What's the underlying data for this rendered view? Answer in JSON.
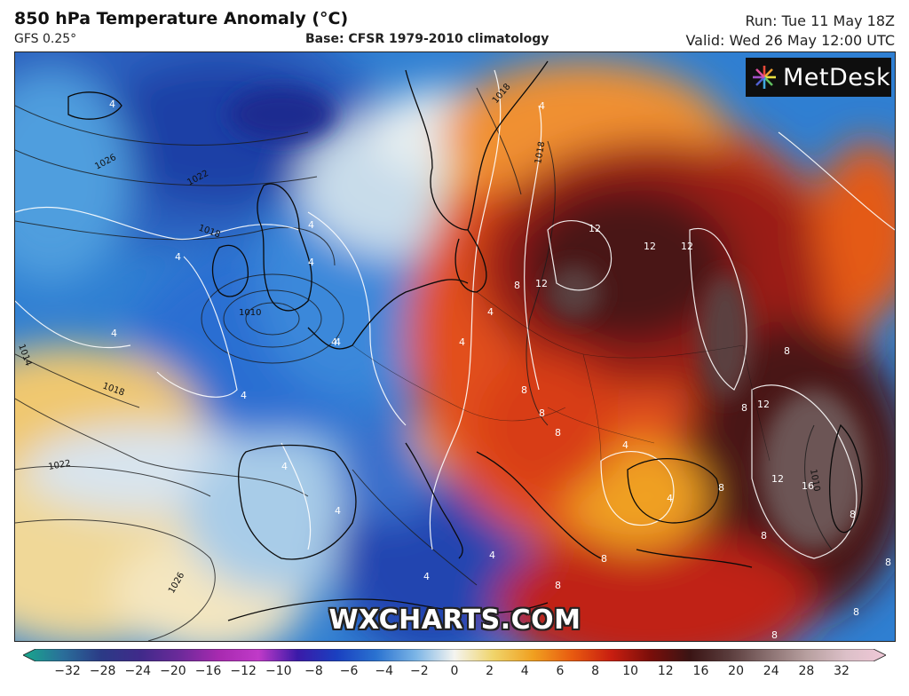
{
  "header": {
    "title": "850 hPa Temperature Anomaly (°C)",
    "model": "GFS 0.25°",
    "base": "Base: CFSR 1979-2010 climatology",
    "run": "Run: Tue 11 May 18Z",
    "valid": "Valid: Wed 26 May 12:00 UTC"
  },
  "logo": {
    "text": "MetDesk",
    "icon": "metdesk-starburst-icon"
  },
  "watermark": "WXCHARTS.COM",
  "colorbar": {
    "ticks": [
      "−32",
      "−28",
      "−24",
      "−20",
      "−16",
      "−12",
      "−10",
      "−8",
      "−6",
      "−4",
      "−2",
      "0",
      "2",
      "4",
      "6",
      "8",
      "10",
      "12",
      "16",
      "20",
      "24",
      "28",
      "32"
    ],
    "colors": [
      "#18a88c",
      "#2a6f9a",
      "#2b3a86",
      "#402a8a",
      "#6c2a9a",
      "#a82ab0",
      "#c03ac8",
      "#3a1aa8",
      "#1a40c0",
      "#2a72d0",
      "#7ab4e6",
      "#f4f4f0",
      "#f0d46a",
      "#f0a020",
      "#e85a10",
      "#c81e10",
      "#7a0e0a",
      "#3a1414",
      "#5a3c3c",
      "#8a7070",
      "#b8a0a0",
      "#dcc0c8",
      "#f0c8d8"
    ]
  },
  "map": {
    "isobar_labels": [
      "1026",
      "1022",
      "1018",
      "1010",
      "1014",
      "1018",
      "1022",
      "1026",
      "1018",
      "1018",
      "1010"
    ],
    "anomaly_labels": [
      "4",
      "4",
      "4",
      "4",
      "4",
      "4",
      "4",
      "4",
      "4",
      "4",
      "4",
      "4",
      "4",
      "4",
      "4",
      "12",
      "12",
      "12",
      "12",
      "8",
      "8",
      "8",
      "8",
      "8",
      "8",
      "12",
      "12",
      "16",
      "8",
      "8",
      "8",
      "8",
      "8",
      "8",
      "8",
      "8",
      "4",
      "4"
    ]
  }
}
